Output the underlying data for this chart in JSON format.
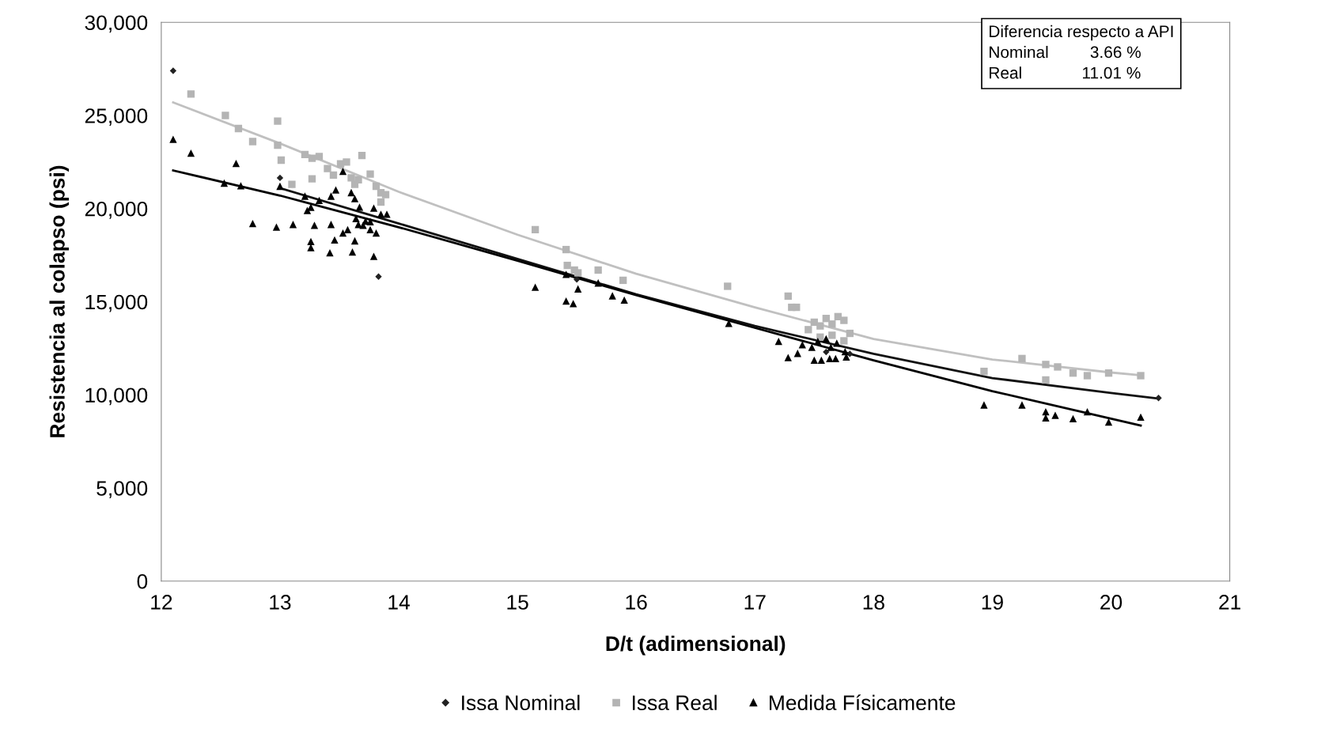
{
  "chart_data": {
    "type": "scatter",
    "xlabel": "D/t (adimensional)",
    "ylabel": "Resistencia al colapso (psi)",
    "xlim": [
      12,
      21
    ],
    "xticks": [
      12,
      13,
      14,
      15,
      16,
      17,
      18,
      19,
      20,
      21
    ],
    "ylim": [
      0,
      30000
    ],
    "yticks": [
      {
        "value": 0,
        "label": "0"
      },
      {
        "value": 5000,
        "label": "5,000"
      },
      {
        "value": 10000,
        "label": "10,000"
      },
      {
        "value": 15000,
        "label": "15,000"
      },
      {
        "value": 20000,
        "label": "20,000"
      },
      {
        "value": 25000,
        "label": "25,000"
      },
      {
        "value": 30000,
        "label": "30,000"
      }
    ],
    "legend": "bottom",
    "grid": false,
    "annotations": [
      "Diferencia respecto a API",
      "Nominal         3.66 %",
      "Real             11.01 %"
    ],
    "series": [
      {
        "name": "Issa Nominal",
        "color": "#222222",
        "marker": "diamond",
        "x": [
          12.1,
          13.0,
          13.83,
          15.5,
          17.6,
          17.8,
          20.4
        ],
        "values": [
          27400,
          21650,
          16350,
          16200,
          12300,
          12200,
          9830
        ]
      },
      {
        "name": "Issa Real",
        "color": "#b4b4b4",
        "marker": "square",
        "x": [
          12.25,
          12.54,
          12.65,
          12.77,
          12.98,
          12.98,
          13.01,
          13.1,
          13.21,
          13.27,
          13.27,
          13.33,
          13.4,
          13.45,
          13.51,
          13.56,
          13.6,
          13.63,
          13.66,
          13.69,
          13.76,
          13.81,
          13.85,
          13.89,
          13.85,
          15.15,
          15.41,
          15.42,
          15.48,
          15.51,
          15.68,
          15.89,
          16.77,
          17.28,
          17.31,
          17.35,
          17.45,
          17.5,
          17.55,
          17.6,
          17.65,
          17.7,
          17.75,
          17.8,
          17.55,
          17.65,
          17.75,
          18.93,
          19.25,
          19.45,
          19.55,
          19.68,
          19.8,
          19.98,
          20.25,
          19.45
        ],
        "values": [
          26150,
          25000,
          24300,
          23600,
          24700,
          23400,
          22600,
          21300,
          22900,
          22700,
          21600,
          22800,
          22150,
          21800,
          22400,
          22500,
          21650,
          21300,
          21550,
          22850,
          21850,
          21200,
          20850,
          20750,
          20350,
          18870,
          17800,
          16950,
          16700,
          16550,
          16700,
          16150,
          15830,
          15300,
          14700,
          14700,
          13500,
          13900,
          13700,
          14100,
          13800,
          14200,
          14000,
          13300,
          13100,
          13200,
          12900,
          11260,
          11950,
          11630,
          11500,
          11170,
          11030,
          11170,
          11030,
          10800
        ]
      },
      {
        "name": "Medida Físicamente",
        "color": "#000000",
        "marker": "triangle",
        "x": [
          12.1,
          12.25,
          12.63,
          12.67,
          12.53,
          12.77,
          12.97,
          13.11,
          13.21,
          13.26,
          13.29,
          13.26,
          13.26,
          13.42,
          13.46,
          13.43,
          13.53,
          13.57,
          13.61,
          13.63,
          13.64,
          13.66,
          13.7,
          13.72,
          13.76,
          13.79,
          13.81,
          13.85,
          13.9,
          13.53,
          13.47,
          13.43,
          13.33,
          13.23,
          13.0,
          13.6,
          13.63,
          13.79,
          13.67,
          13.76,
          15.15,
          15.41,
          15.41,
          15.47,
          15.51,
          15.68,
          15.9,
          15.8,
          16.78,
          17.2,
          17.28,
          17.36,
          17.4,
          17.5,
          17.56,
          17.64,
          17.69,
          17.63,
          17.68,
          17.76,
          17.77,
          17.53,
          17.6,
          17.48,
          18.93,
          19.25,
          19.45,
          19.45,
          19.53,
          19.68,
          19.8,
          19.98,
          20.25
        ],
        "values": [
          23720,
          22980,
          22430,
          21230,
          21370,
          19200,
          19010,
          19150,
          20670,
          20070,
          19100,
          18230,
          17900,
          17630,
          18320,
          19150,
          18690,
          18870,
          17670,
          18270,
          19470,
          19150,
          19100,
          19330,
          18870,
          17440,
          18690,
          19700,
          19700,
          22000,
          21000,
          20670,
          20440,
          19900,
          21200,
          20860,
          20540,
          20030,
          20080,
          19300,
          15780,
          16470,
          15040,
          14900,
          15690,
          16010,
          15090,
          15320,
          13840,
          12870,
          12000,
          12230,
          12690,
          11860,
          11860,
          12550,
          12780,
          11950,
          11950,
          12320,
          12040,
          12870,
          13010,
          12550,
          9460,
          9460,
          9090,
          8770,
          8900,
          8720,
          9090,
          8540,
          8810
        ]
      },
      {
        "type": "line",
        "color": "#c0c0c0",
        "marker": "none",
        "x": [
          12.1,
          13,
          14,
          15,
          16,
          17,
          18,
          19,
          20,
          20.25
        ],
        "values": [
          25700,
          23500,
          20900,
          18600,
          16500,
          14700,
          13000,
          11900,
          11200,
          11050
        ]
      },
      {
        "type": "line",
        "color": "#111111",
        "marker": "none",
        "x": [
          13,
          14,
          15,
          16,
          17,
          18,
          19,
          20,
          20.4
        ],
        "values": [
          21100,
          19200,
          17300,
          15400,
          13700,
          12200,
          10900,
          10100,
          9800
        ]
      },
      {
        "type": "line",
        "color": "#000000",
        "marker": "none",
        "x": [
          12.1,
          13,
          14,
          15,
          16,
          17,
          18,
          19,
          20.25
        ],
        "values": [
          22050,
          20700,
          19000,
          17200,
          15350,
          13600,
          11850,
          10200,
          8350
        ]
      }
    ]
  }
}
